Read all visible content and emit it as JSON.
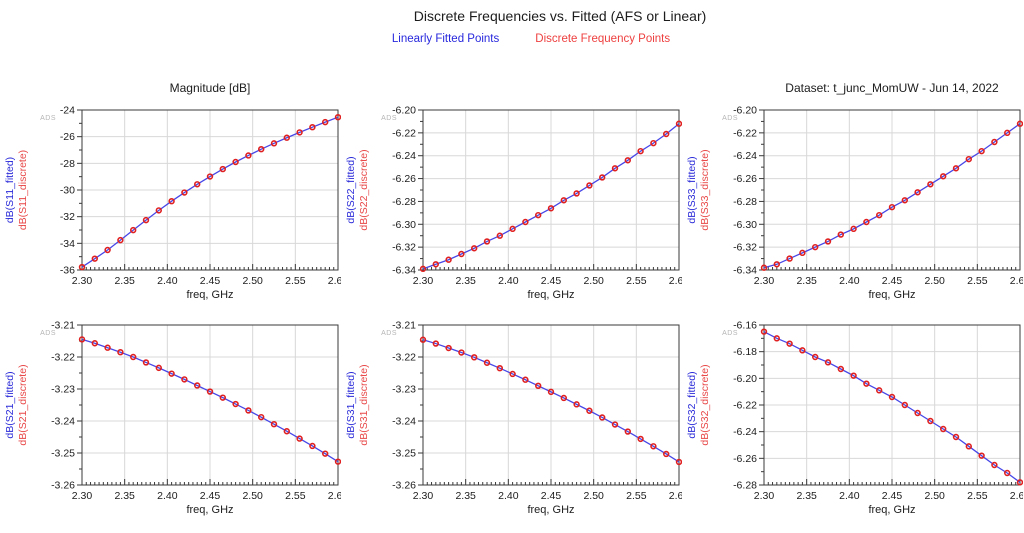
{
  "header": {
    "title": "Discrete Frequencies vs. Fitted (AFS or Linear)",
    "legend": [
      {
        "label": "Linearly Fitted Points",
        "color": "#2727dd"
      },
      {
        "label": "Discrete Frequency Points",
        "color": "#ee4040"
      }
    ]
  },
  "watermark": "ADS",
  "palette": {
    "fitted_line": "#4747e8",
    "discrete_marker": "#e02020",
    "fitted_label": "#2b2bd9",
    "discrete_label": "#e84848",
    "grid": "#d8d8d8",
    "axis": "#3a3a3a",
    "text": "#1c1c1c",
    "watermark": "#b5b5b5"
  },
  "chart_data": {
    "type": "line",
    "xlabel": "freq, GHz",
    "xlim": [
      2.3,
      2.6
    ],
    "xtick_step": 0.05,
    "xtick_decimals": 2,
    "x": [
      2.3,
      2.315,
      2.33,
      2.345,
      2.36,
      2.375,
      2.39,
      2.405,
      2.42,
      2.435,
      2.45,
      2.465,
      2.48,
      2.495,
      2.51,
      2.525,
      2.54,
      2.555,
      2.57,
      2.585,
      2.6
    ],
    "series_note": "Each chart has two coincident series: a blue linearly-fitted line and red discrete-frequency points sharing the same values.",
    "legend_position": "top-center",
    "grid": true,
    "charts": [
      {
        "id": "S11",
        "title": "Magnitude [dB]",
        "ylabel_fitted": "dB(S11_fitted)",
        "ylabel_discrete": "dB(S11_discrete)",
        "ylim": [
          -36,
          -24
        ],
        "ytick_step": 2,
        "ytick_decimals": 0,
        "values": [
          -35.78,
          -35.15,
          -34.5,
          -33.76,
          -33.01,
          -32.26,
          -31.53,
          -30.84,
          -30.19,
          -29.57,
          -28.99,
          -28.43,
          -27.9,
          -27.41,
          -26.94,
          -26.5,
          -26.08,
          -25.68,
          -25.29,
          -24.91,
          -24.54
        ]
      },
      {
        "id": "S22",
        "title": "",
        "ylabel_fitted": "dB(S22_fitted)",
        "ylabel_discrete": "dB(S22_discrete)",
        "ylim": [
          -6.34,
          -6.2
        ],
        "ytick_step": 0.02,
        "ytick_decimals": 2,
        "values": [
          -6.339,
          -6.335,
          -6.331,
          -6.326,
          -6.321,
          -6.315,
          -6.31,
          -6.304,
          -6.298,
          -6.292,
          -6.286,
          -6.279,
          -6.273,
          -6.266,
          -6.259,
          -6.251,
          -6.244,
          -6.236,
          -6.229,
          -6.221,
          -6.212
        ]
      },
      {
        "id": "S33",
        "title": "Dataset: t_junc_MomUW - Jun 14, 2022",
        "ylabel_fitted": "dB(S33_fitted)",
        "ylabel_discrete": "dB(S33_discrete)",
        "ylim": [
          -6.34,
          -6.2
        ],
        "ytick_step": 0.02,
        "ytick_decimals": 2,
        "values": [
          -6.338,
          -6.335,
          -6.33,
          -6.325,
          -6.32,
          -6.315,
          -6.309,
          -6.304,
          -6.298,
          -6.292,
          -6.285,
          -6.279,
          -6.272,
          -6.265,
          -6.258,
          -6.251,
          -6.243,
          -6.236,
          -6.228,
          -6.22,
          -6.212
        ]
      },
      {
        "id": "S21",
        "title": "",
        "ylabel_fitted": "dB(S21_fitted)",
        "ylabel_discrete": "dB(S21_discrete)",
        "ylim": [
          -3.26,
          -3.21
        ],
        "ytick_step": 0.01,
        "ytick_decimals": 2,
        "values": [
          -3.2145,
          -3.2157,
          -3.2171,
          -3.2185,
          -3.22,
          -3.2217,
          -3.2234,
          -3.2252,
          -3.227,
          -3.2289,
          -3.2308,
          -3.2327,
          -3.2347,
          -3.2367,
          -3.2388,
          -3.241,
          -3.2432,
          -3.2455,
          -3.2478,
          -3.2502,
          -3.2527
        ]
      },
      {
        "id": "S31",
        "title": "",
        "ylabel_fitted": "dB(S31_fitted)",
        "ylabel_discrete": "dB(S31_discrete)",
        "ylim": [
          -3.26,
          -3.21
        ],
        "ytick_step": 0.01,
        "ytick_decimals": 2,
        "values": [
          -3.2146,
          -3.2158,
          -3.2172,
          -3.2186,
          -3.2201,
          -3.2218,
          -3.2235,
          -3.2253,
          -3.2271,
          -3.229,
          -3.2309,
          -3.2328,
          -3.2348,
          -3.2368,
          -3.2389,
          -3.2411,
          -3.2433,
          -3.2456,
          -3.2479,
          -3.2503,
          -3.2528
        ]
      },
      {
        "id": "S32",
        "title": "",
        "ylabel_fitted": "dB(S32_fitted)",
        "ylabel_discrete": "dB(S32_discrete)",
        "ylim": [
          -6.28,
          -6.16
        ],
        "ytick_step": 0.02,
        "ytick_decimals": 2,
        "values": [
          -6.165,
          -6.17,
          -6.174,
          -6.179,
          -6.184,
          -6.188,
          -6.193,
          -6.198,
          -6.204,
          -6.209,
          -6.214,
          -6.22,
          -6.226,
          -6.232,
          -6.238,
          -6.244,
          -6.251,
          -6.258,
          -6.265,
          -6.271,
          -6.278
        ]
      }
    ]
  }
}
